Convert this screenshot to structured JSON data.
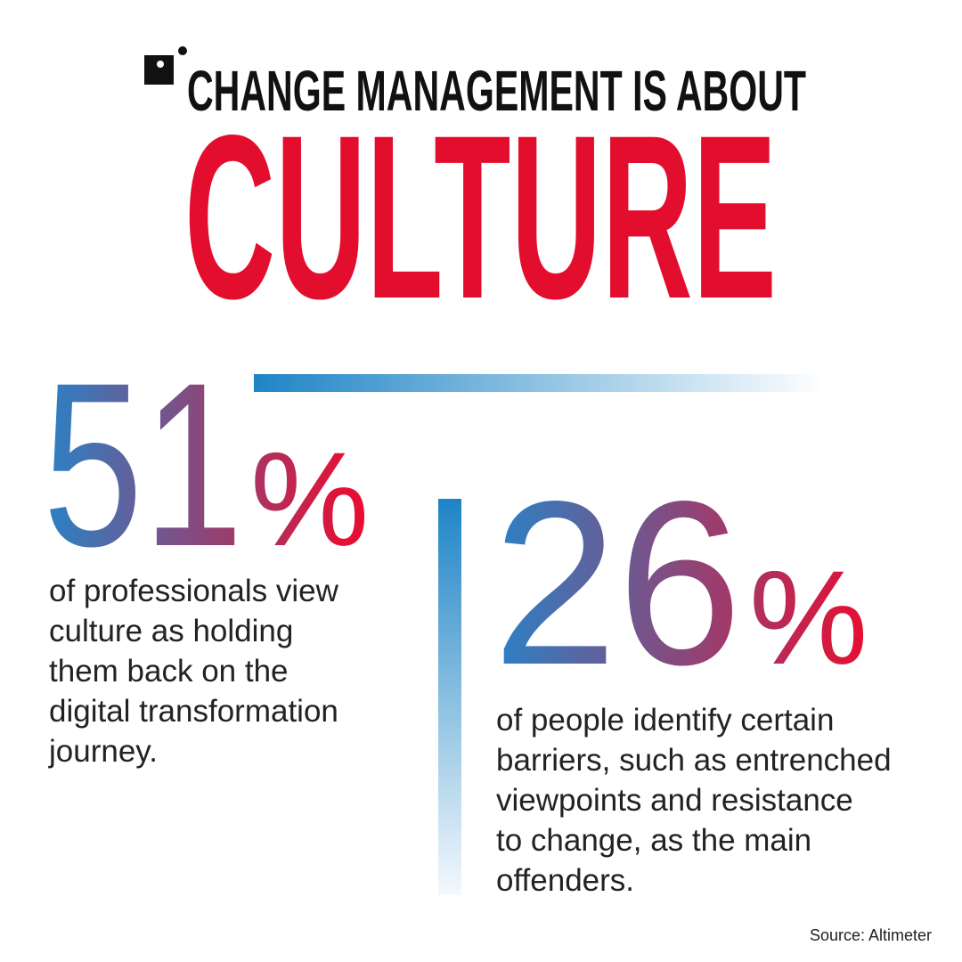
{
  "header": {
    "kicker": "CHANGE MANAGEMENT IS ABOUT",
    "title": "CULTURE"
  },
  "stats": [
    {
      "number": 51,
      "unit": "%",
      "lines": [
        "of professionals view",
        "culture as holding",
        "them back on the",
        "digital transformation",
        "journey."
      ]
    },
    {
      "number": 26,
      "unit": "%",
      "lines": [
        "of people identify certain",
        "barriers, such as entrenched",
        "viewpoints and resistance",
        "to change, as the main",
        "offenders."
      ]
    }
  ],
  "source": "Source: Altimeter"
}
